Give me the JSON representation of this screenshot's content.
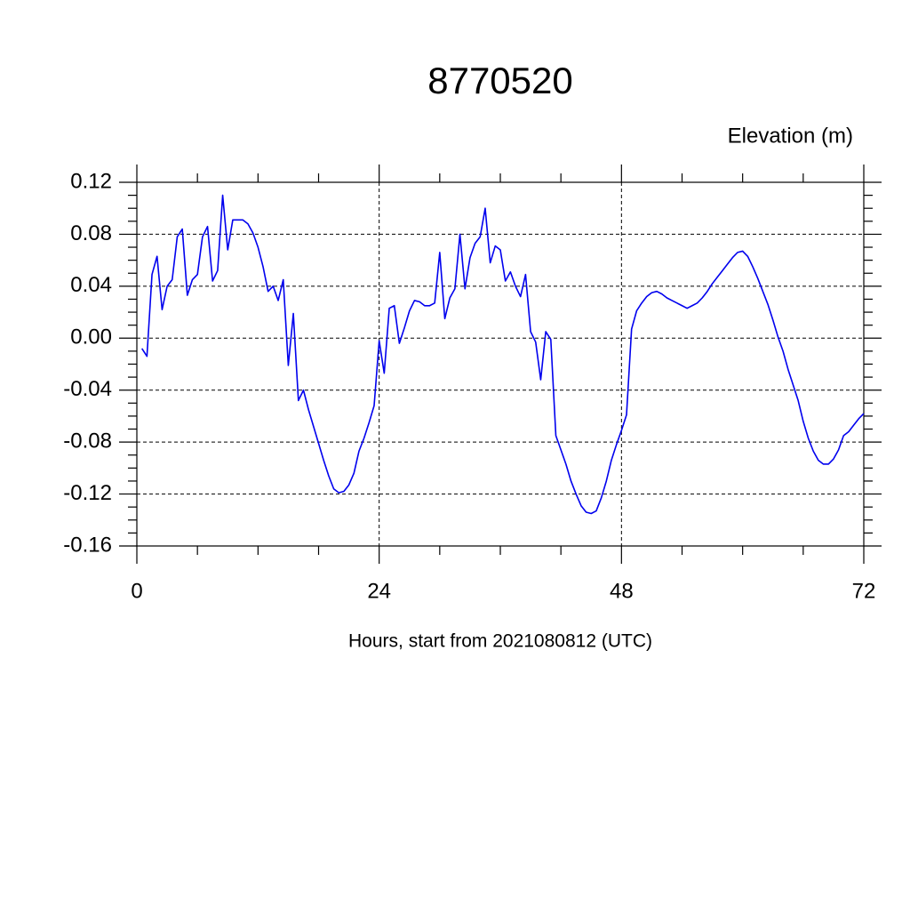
{
  "chart_data": {
    "type": "line",
    "title": "8770520",
    "subtitle": "Elevation (m)",
    "x_label": "Hours, start from 2021080812 (UTC)",
    "x": [
      0.5,
      1,
      1.5,
      2,
      2.5,
      3,
      3.5,
      4,
      4.5,
      5,
      5.5,
      6,
      6.5,
      7,
      7.5,
      8,
      8.5,
      9,
      9.5,
      10,
      10.5,
      11,
      11.5,
      12,
      12.5,
      13,
      13.5,
      14,
      14.5,
      15,
      15.5,
      16,
      16.5,
      17,
      17.5,
      18,
      18.5,
      19,
      19.5,
      20,
      20.5,
      21,
      21.5,
      22,
      22.5,
      23,
      23.5,
      24,
      24.5,
      25,
      25.5,
      26,
      26.5,
      27,
      27.5,
      28,
      28.5,
      29,
      29.5,
      30,
      30.5,
      31,
      31.5,
      32,
      32.5,
      33,
      33.5,
      34,
      34.5,
      35,
      35.5,
      36,
      36.5,
      37,
      37.5,
      38,
      38.5,
      39,
      39.5,
      40,
      40.5,
      41,
      41.5,
      42,
      42.5,
      43,
      43.5,
      44,
      44.5,
      45,
      45.5,
      46,
      46.5,
      47,
      47.5,
      48,
      48.5,
      49,
      49.5,
      50,
      50.5,
      51,
      51.5,
      52,
      52.5,
      53,
      53.5,
      54,
      54.5,
      55,
      55.5,
      56,
      56.5,
      57,
      57.5,
      58,
      58.5,
      59,
      59.5,
      60,
      60.5,
      61,
      61.5,
      62,
      62.5,
      63,
      63.5,
      64,
      64.5,
      65,
      65.5,
      66,
      66.5,
      67,
      67.5,
      68,
      68.5,
      69,
      69.5,
      70,
      70.5,
      71,
      71.5,
      72
    ],
    "series": [
      {
        "name": "Elevation",
        "color": "#0000ee",
        "values": [
          -0.008,
          -0.014,
          0.049,
          0.063,
          0.022,
          0.04,
          0.045,
          0.078,
          0.084,
          0.033,
          0.045,
          0.049,
          0.078,
          0.086,
          0.044,
          0.052,
          0.11,
          0.068,
          0.091,
          0.091,
          0.091,
          0.088,
          0.081,
          0.07,
          0.055,
          0.036,
          0.04,
          0.029,
          0.045,
          -0.021,
          0.019,
          -0.048,
          -0.04,
          -0.055,
          -0.068,
          -0.081,
          -0.094,
          -0.106,
          -0.116,
          -0.119,
          -0.118,
          -0.113,
          -0.104,
          -0.087,
          -0.077,
          -0.065,
          -0.052,
          -0.002,
          -0.027,
          0.023,
          0.025,
          -0.004,
          0.008,
          0.021,
          0.029,
          0.028,
          0.025,
          0.025,
          0.027,
          0.066,
          0.015,
          0.031,
          0.038,
          0.08,
          0.038,
          0.062,
          0.073,
          0.078,
          0.1,
          0.058,
          0.071,
          0.068,
          0.044,
          0.051,
          0.04,
          0.032,
          0.049,
          0.005,
          -0.003,
          -0.032,
          0.005,
          -0.001,
          -0.075,
          -0.086,
          -0.097,
          -0.11,
          -0.12,
          -0.129,
          -0.134,
          -0.135,
          -0.133,
          -0.123,
          -0.11,
          -0.094,
          -0.082,
          -0.071,
          -0.059,
          0.007,
          0.021,
          0.027,
          0.032,
          0.035,
          0.036,
          0.034,
          0.031,
          0.029,
          0.027,
          0.025,
          0.023,
          0.025,
          0.027,
          0.031,
          0.036,
          0.042,
          0.047,
          0.052,
          0.057,
          0.062,
          0.066,
          0.067,
          0.063,
          0.055,
          0.046,
          0.036,
          0.026,
          0.014,
          0.001,
          -0.01,
          -0.024,
          -0.036,
          -0.048,
          -0.064,
          -0.077,
          -0.087,
          -0.094,
          -0.097,
          -0.097,
          -0.093,
          -0.086,
          -0.075,
          -0.072,
          -0.067,
          -0.062,
          -0.058
        ]
      }
    ],
    "xlim": [
      0,
      72
    ],
    "xticks": [
      0,
      24,
      48,
      72
    ],
    "ylim": [
      -0.16,
      0.12
    ],
    "yticks": [
      0.12,
      0.08,
      0.04,
      {
        "value": 0,
        "label": "0.00"
      },
      -0.04,
      -0.08,
      -0.12,
      -0.16
    ],
    "grid": true
  }
}
